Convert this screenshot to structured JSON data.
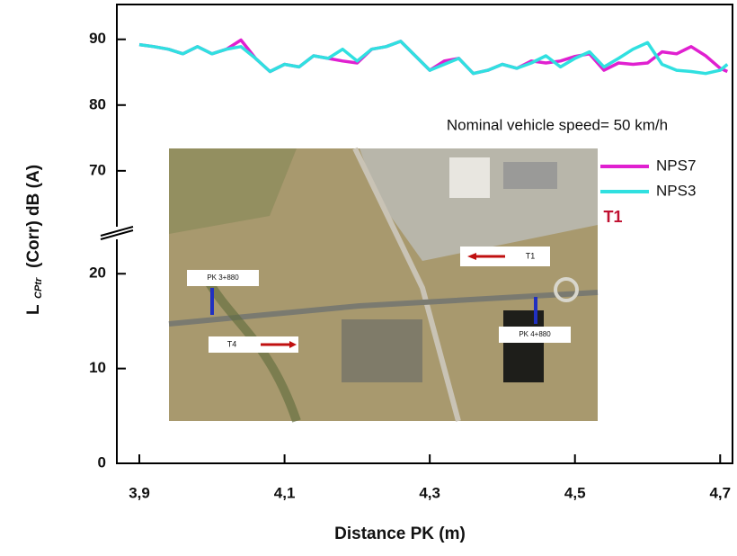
{
  "chart_data": {
    "type": "line",
    "xlabel": "Distance  PK (m)",
    "ylabel": "L",
    "ylabel_sub": "CPtr",
    "ylabel_rest": "(Corr)   dB (A)",
    "annotations": [
      "Nominal vehicle speed= 50 km/h",
      "T1"
    ],
    "inset_labels": [
      "PK 3+880",
      "T4",
      "T1",
      "PK 4+880"
    ],
    "xlim": [
      3.869,
      4.717
    ],
    "xticks": [
      {
        "value": 3.9,
        "label": "3,9"
      },
      {
        "value": 4.1,
        "label": "4,1"
      },
      {
        "value": 4.3,
        "label": "4,3"
      },
      {
        "value": 4.5,
        "label": "4,5"
      },
      {
        "value": 4.7,
        "label": "4,7"
      }
    ],
    "ylim": [
      0,
      24.2
    ],
    "yticks": [
      0,
      10,
      20
    ],
    "ylim_upper": [
      60.4,
      95.3
    ],
    "yticks_upper": [
      70,
      80,
      90
    ],
    "x": [
      3.9,
      3.92,
      3.94,
      3.96,
      3.98,
      4.0,
      4.02,
      4.04,
      4.06,
      4.08,
      4.1,
      4.12,
      4.14,
      4.16,
      4.18,
      4.2,
      4.22,
      4.24,
      4.26,
      4.28,
      4.3,
      4.32,
      4.34,
      4.36,
      4.38,
      4.4,
      4.42,
      4.44,
      4.46,
      4.48,
      4.5,
      4.52,
      4.54,
      4.56,
      4.58,
      4.6,
      4.62,
      4.64,
      4.66,
      4.68,
      4.7,
      4.71
    ],
    "series": [
      {
        "name": "NPS7",
        "color": "#e020d0",
        "values": [
          89.2,
          88.9,
          88.5,
          87.8,
          88.9,
          87.8,
          88.5,
          89.9,
          87.1,
          85.1,
          86.2,
          85.8,
          87.5,
          87.1,
          86.7,
          86.4,
          88.5,
          88.9,
          89.7,
          87.5,
          85.3,
          86.7,
          87.1,
          84.8,
          85.3,
          86.2,
          85.6,
          86.7,
          86.4,
          86.7,
          87.4,
          87.8,
          85.3,
          86.4,
          86.2,
          86.4,
          88.1,
          87.8,
          88.9,
          87.5,
          85.6,
          85.1
        ]
      },
      {
        "name": "NPS3",
        "color": "#30e0e0",
        "values": [
          89.2,
          88.9,
          88.5,
          87.8,
          88.9,
          87.8,
          88.5,
          88.9,
          87.1,
          85.1,
          86.2,
          85.8,
          87.5,
          87.1,
          88.5,
          86.7,
          88.5,
          88.9,
          89.7,
          87.5,
          85.3,
          86.2,
          87.1,
          84.8,
          85.3,
          86.2,
          85.6,
          86.4,
          87.5,
          85.8,
          87.1,
          88.1,
          85.8,
          87.1,
          88.5,
          89.5,
          86.2,
          85.3,
          85.1,
          84.8,
          85.3,
          86.2
        ]
      }
    ]
  }
}
